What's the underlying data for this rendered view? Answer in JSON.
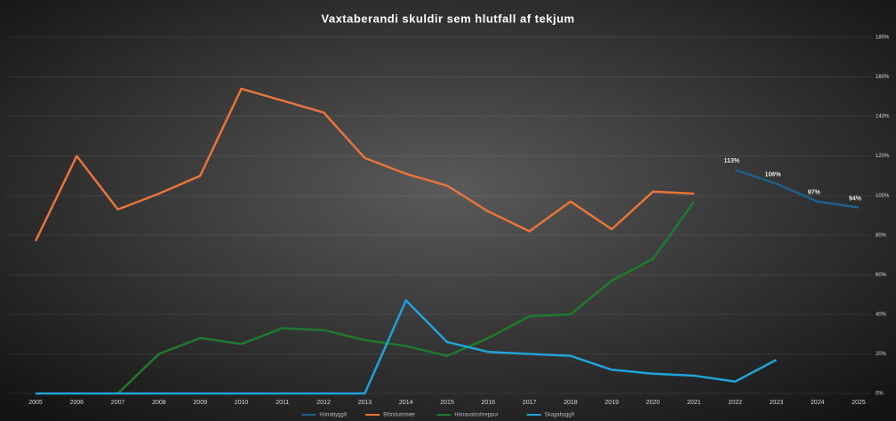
{
  "chart_data": {
    "type": "line",
    "title": "Vaxtaberandi skuldir sem hlutfall af tekjum",
    "categories": [
      "2005",
      "2006",
      "2007",
      "2008",
      "2009",
      "2010",
      "2011",
      "2012",
      "2013",
      "2014",
      "2015",
      "2016",
      "2017",
      "2018",
      "2019",
      "2020",
      "2021",
      "2022",
      "2023",
      "2024",
      "2025"
    ],
    "series": [
      {
        "name": "Húnabyggð",
        "color": "#1f5f8b",
        "values": [
          null,
          null,
          null,
          null,
          null,
          null,
          null,
          null,
          null,
          null,
          null,
          null,
          null,
          null,
          null,
          null,
          null,
          113,
          106,
          97,
          94
        ],
        "value_labels": [
          null,
          null,
          null,
          null,
          null,
          null,
          null,
          null,
          null,
          null,
          null,
          null,
          null,
          null,
          null,
          null,
          null,
          "113%",
          "106%",
          "97%",
          "94%"
        ]
      },
      {
        "name": "Blönduósbær",
        "color": "#e8743b",
        "values": [
          77,
          120,
          93,
          101,
          110,
          154,
          148,
          142,
          119,
          111,
          105,
          92,
          82,
          97,
          83,
          102,
          101,
          null,
          null,
          null,
          null
        ]
      },
      {
        "name": "Húnavatnshreppur",
        "color": "#1e7a2e",
        "values": [
          null,
          null,
          0,
          20,
          28,
          25,
          33,
          32,
          27,
          24,
          19,
          28,
          39,
          40,
          57,
          68,
          97,
          null,
          null,
          null,
          null
        ]
      },
      {
        "name": "Skagabyggð",
        "color": "#1fa3d8",
        "values": [
          0,
          0,
          0,
          0,
          0,
          0,
          0,
          0,
          0,
          47,
          26,
          21,
          20,
          19,
          12,
          10,
          9,
          6,
          17,
          null,
          null
        ]
      }
    ],
    "ylim": [
      0,
      180
    ],
    "yticks": [
      {
        "value": 0,
        "label": "0%"
      },
      {
        "value": 20,
        "label": "20%"
      },
      {
        "value": 40,
        "label": "40%"
      },
      {
        "value": 60,
        "label": "60%"
      },
      {
        "value": 80,
        "label": "80%"
      },
      {
        "value": 100,
        "label": "100%"
      },
      {
        "value": 120,
        "label": "120%"
      },
      {
        "value": 140,
        "label": "140%"
      },
      {
        "value": 160,
        "label": "160%"
      },
      {
        "value": 180,
        "label": "180%"
      }
    ],
    "grid": true,
    "legend": "bottom"
  }
}
